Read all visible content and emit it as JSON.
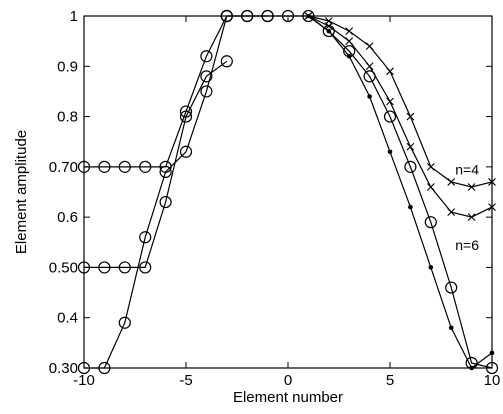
{
  "chart_data": {
    "type": "line",
    "title": "",
    "xlabel": "Element number",
    "ylabel": "Element amplitude",
    "xlim": [
      -10,
      10
    ],
    "ylim": [
      0.3,
      1.0
    ],
    "xticks": [
      -10,
      -5,
      0,
      5,
      10
    ],
    "yticks": [
      0.3,
      0.4,
      0.5,
      0.6,
      0.7,
      0.8,
      0.9,
      1.0
    ],
    "xtick_labels": [
      "-10",
      "-5",
      "0",
      "5",
      "10"
    ],
    "ytick_labels": [
      "0.30",
      "0.4",
      "0.50",
      "0.6",
      "0.70",
      "0.8",
      "0.9",
      "1"
    ],
    "grid": false,
    "legend": "none",
    "series": [
      {
        "marker": "o",
        "x": [
          -10,
          -9,
          -8,
          -7,
          -6,
          -5,
          -4,
          -3,
          -2,
          -1
        ],
        "y": [
          0.7,
          0.7,
          0.7,
          0.7,
          0.7,
          0.81,
          0.92,
          1.0,
          1.0,
          1.0
        ]
      },
      {
        "marker": "o",
        "x": [
          -10,
          -9,
          -8,
          -7,
          -6,
          -5,
          -4,
          -3
        ],
        "y": [
          0.5,
          0.5,
          0.5,
          0.5,
          0.63,
          0.8,
          0.88,
          0.91
        ]
      },
      {
        "marker": "o",
        "x": [
          -10,
          -9,
          -8,
          -7,
          -6,
          -5,
          -4,
          -3
        ],
        "y": [
          0.3,
          0.3,
          0.39,
          0.56,
          0.69,
          0.73,
          0.85,
          1.0
        ]
      },
      {
        "marker": "o",
        "x": [
          -3,
          -2,
          -1,
          0,
          1,
          2,
          3,
          4,
          5,
          6,
          7,
          8,
          9,
          10
        ],
        "y": [
          1.0,
          1.0,
          1.0,
          1.0,
          1.0,
          0.97,
          0.93,
          0.88,
          0.8,
          0.7,
          0.59,
          0.46,
          0.31,
          0.3
        ]
      },
      {
        "marker": ".",
        "x": [
          1,
          2,
          3,
          4,
          5,
          6,
          7,
          8,
          9,
          10
        ],
        "y": [
          1.0,
          0.97,
          0.92,
          0.84,
          0.73,
          0.62,
          0.5,
          0.38,
          0.3,
          0.33
        ]
      },
      {
        "marker": "x",
        "x": [
          1,
          2,
          3,
          4,
          5,
          6,
          7,
          8,
          9,
          10
        ],
        "y": [
          1.0,
          0.98,
          0.95,
          0.9,
          0.83,
          0.74,
          0.66,
          0.61,
          0.6,
          0.62
        ]
      },
      {
        "marker": "x",
        "x": [
          1,
          2,
          3,
          4,
          5,
          6,
          7,
          8,
          9,
          10
        ],
        "y": [
          1.0,
          0.99,
          0.97,
          0.94,
          0.89,
          0.8,
          0.7,
          0.67,
          0.66,
          0.67
        ]
      }
    ],
    "annotations": [
      {
        "text": "n=4",
        "x": 8.2,
        "y": 0.685
      },
      {
        "text": "n=6",
        "x": 8.2,
        "y": 0.535
      }
    ]
  }
}
